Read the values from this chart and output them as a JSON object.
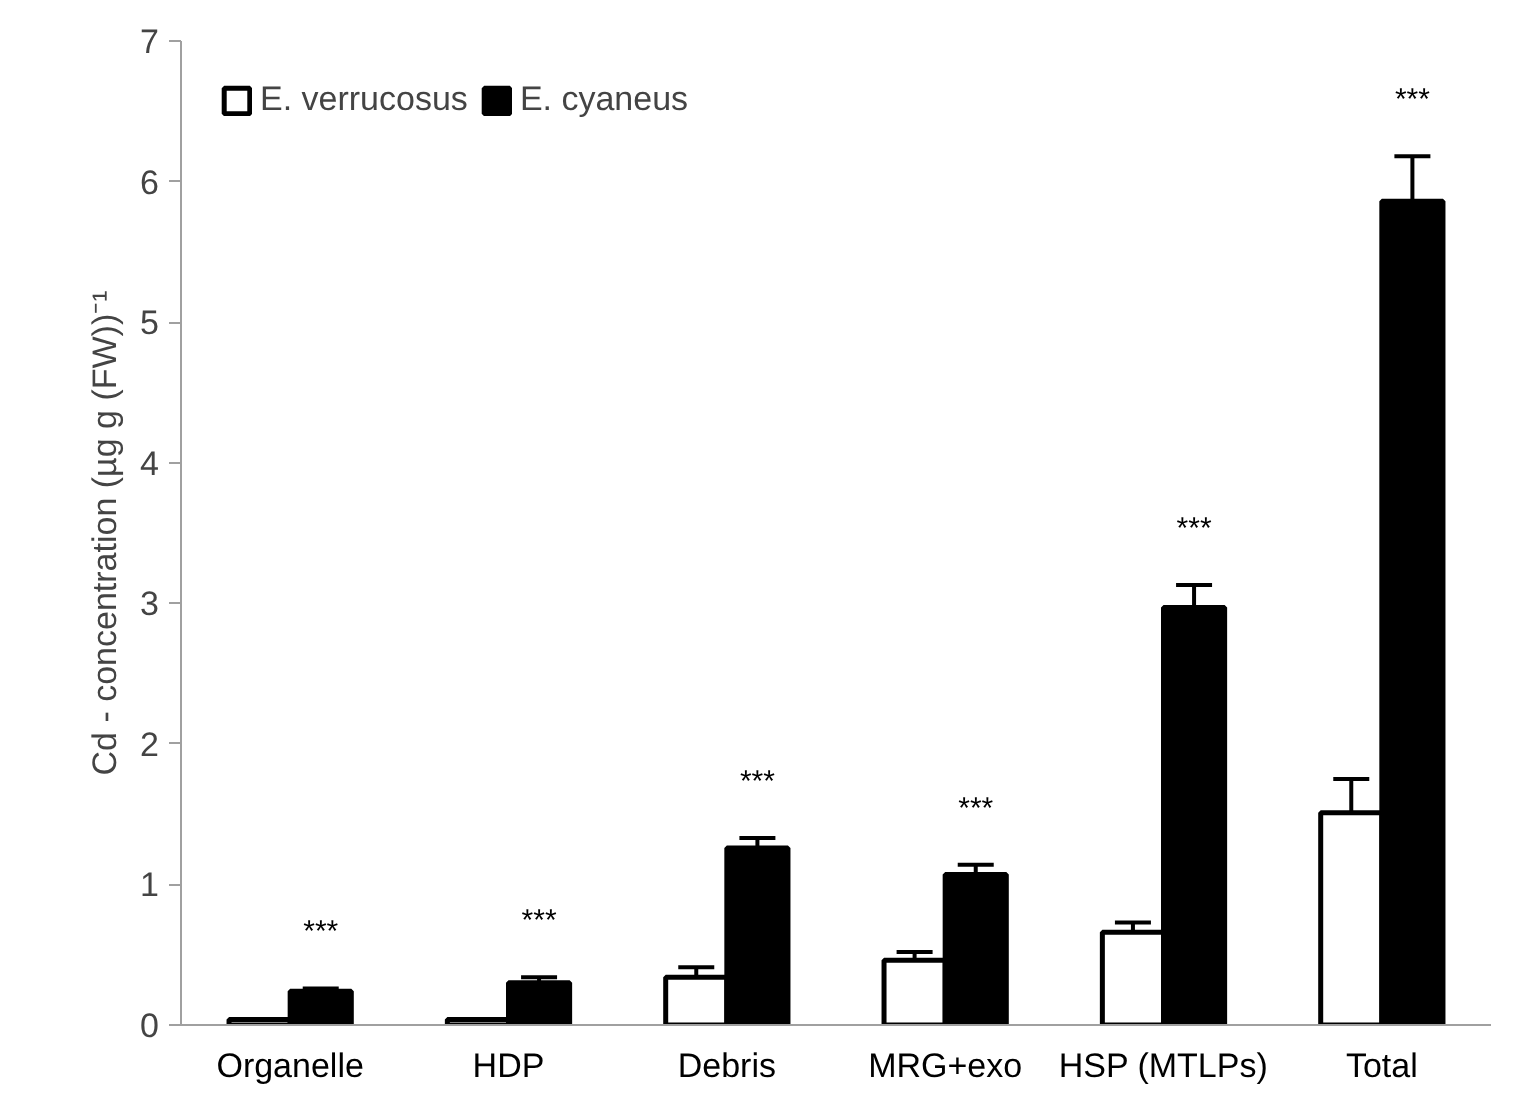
{
  "chart_data": {
    "type": "bar",
    "ylabel": "Cd - concentration (µg g (FW))⁻¹",
    "categories": [
      "Organelle",
      "HDP",
      "Debris",
      "MRG+exo",
      "HSP (MTLPs)",
      "Total"
    ],
    "series": [
      {
        "name": "E. verrucosus",
        "color": "#ffffff",
        "values": [
          0.04,
          0.04,
          0.34,
          0.46,
          0.66,
          1.51
        ],
        "errors": [
          null,
          null,
          0.07,
          0.06,
          0.07,
          0.24
        ]
      },
      {
        "name": "E. cyaneus",
        "color": "#000000",
        "values": [
          0.24,
          0.3,
          1.26,
          1.07,
          2.97,
          5.86
        ],
        "errors": [
          0.02,
          0.04,
          0.07,
          0.07,
          0.16,
          0.32
        ]
      }
    ],
    "annotations": [
      "***",
      "***",
      "***",
      "***",
      "***",
      "***"
    ],
    "ylim": [
      0,
      7
    ],
    "yticks": [
      0,
      1,
      2,
      3,
      4,
      5,
      6,
      7
    ],
    "grid": false,
    "legend": "top left"
  }
}
